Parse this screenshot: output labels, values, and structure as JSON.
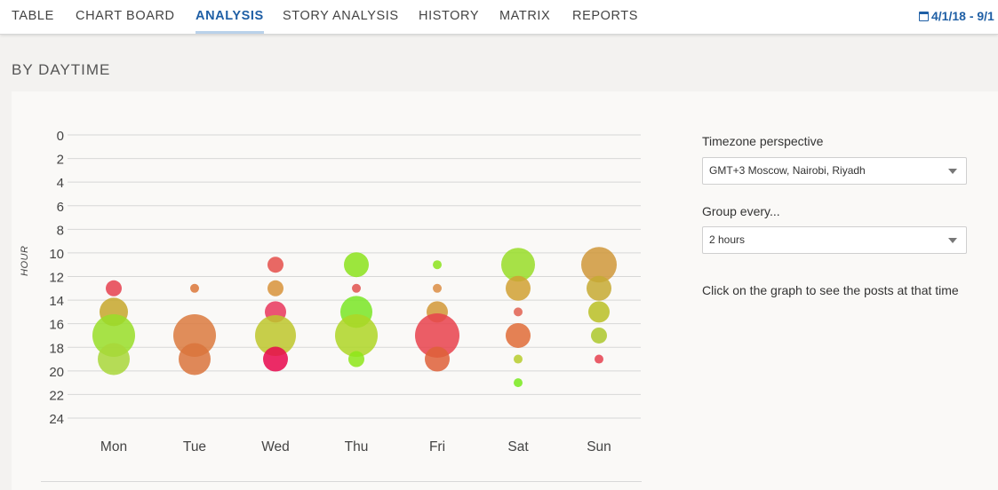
{
  "nav": {
    "tabs": [
      {
        "label": "TABLE"
      },
      {
        "label": "CHART BOARD"
      },
      {
        "label": "ANALYSIS"
      },
      {
        "label": "STORY ANALYSIS"
      },
      {
        "label": "HISTORY"
      },
      {
        "label": "MATRIX"
      },
      {
        "label": "REPORTS"
      }
    ],
    "active_tab": "ANALYSIS",
    "date_range": "4/1/18 - 9/1",
    "date_icon": "calendar-icon"
  },
  "section": {
    "title": "BY DAYTIME"
  },
  "controls": {
    "timezone_label": "Timezone perspective",
    "timezone_value": "GMT+3 Moscow, Nairobi, Riyadh",
    "group_label": "Group every...",
    "group_value": "2 hours",
    "hint": "Click on the graph to see the posts at that time"
  },
  "chart_data": {
    "type": "scatter",
    "xlabel": "",
    "ylabel": "HOUR",
    "categories": [
      "Mon",
      "Tue",
      "Wed",
      "Thu",
      "Fri",
      "Sat",
      "Sun"
    ],
    "y_ticks": [
      0,
      2,
      4,
      6,
      8,
      10,
      12,
      14,
      16,
      18,
      20,
      22,
      24
    ],
    "ylim": [
      0,
      24
    ],
    "y_inverted": true,
    "grid": true,
    "points": [
      {
        "day": "Mon",
        "hour": 13,
        "r": 9,
        "color": "#e5414f"
      },
      {
        "day": "Mon",
        "hour": 15,
        "r": 16,
        "color": "#c6a72b"
      },
      {
        "day": "Mon",
        "hour": 17,
        "r": 24,
        "color": "#98de28"
      },
      {
        "day": "Mon",
        "hour": 19,
        "r": 18,
        "color": "#a8d73a"
      },
      {
        "day": "Tue",
        "hour": 13,
        "r": 5,
        "color": "#db7738"
      },
      {
        "day": "Tue",
        "hour": 17,
        "r": 24,
        "color": "#db7a3e"
      },
      {
        "day": "Tue",
        "hour": 19,
        "r": 18,
        "color": "#d9743c"
      },
      {
        "day": "Wed",
        "hour": 11,
        "r": 9,
        "color": "#e44f4a"
      },
      {
        "day": "Wed",
        "hour": 13,
        "r": 9,
        "color": "#d7933a"
      },
      {
        "day": "Wed",
        "hour": 15,
        "r": 12,
        "color": "#e7365c"
      },
      {
        "day": "Wed",
        "hour": 17,
        "r": 23,
        "color": "#bdc72c"
      },
      {
        "day": "Wed",
        "hour": 19,
        "r": 14,
        "color": "#e8074c"
      },
      {
        "day": "Thu",
        "hour": 11,
        "r": 14,
        "color": "#8be31c"
      },
      {
        "day": "Thu",
        "hour": 13,
        "r": 5,
        "color": "#e0524e"
      },
      {
        "day": "Thu",
        "hour": 15,
        "r": 18,
        "color": "#79e625"
      },
      {
        "day": "Thu",
        "hour": 17,
        "r": 24,
        "color": "#aed626"
      },
      {
        "day": "Thu",
        "hour": 19,
        "r": 9,
        "color": "#8de619"
      },
      {
        "day": "Fri",
        "hour": 11,
        "r": 5,
        "color": "#8be31c"
      },
      {
        "day": "Fri",
        "hour": 13,
        "r": 5,
        "color": "#db8d43"
      },
      {
        "day": "Fri",
        "hour": 15,
        "r": 12,
        "color": "#d19836"
      },
      {
        "day": "Fri",
        "hour": 17,
        "r": 25,
        "color": "#e7424c"
      },
      {
        "day": "Fri",
        "hour": 19,
        "r": 14,
        "color": "#de6038"
      },
      {
        "day": "Sat",
        "hour": 11,
        "r": 19,
        "color": "#98dd28"
      },
      {
        "day": "Sat",
        "hour": 13,
        "r": 14,
        "color": "#d0a132"
      },
      {
        "day": "Sat",
        "hour": 15,
        "r": 5,
        "color": "#e06150"
      },
      {
        "day": "Sat",
        "hour": 17,
        "r": 14,
        "color": "#df6c37"
      },
      {
        "day": "Sat",
        "hour": 19,
        "r": 5,
        "color": "#b6cc2c"
      },
      {
        "day": "Sat",
        "hour": 21,
        "r": 5,
        "color": "#78ea1c"
      },
      {
        "day": "Sun",
        "hour": 11,
        "r": 20,
        "color": "#cf9839"
      },
      {
        "day": "Sun",
        "hour": 13,
        "r": 14,
        "color": "#c6aa32"
      },
      {
        "day": "Sun",
        "hour": 15,
        "r": 12,
        "color": "#b9c024"
      },
      {
        "day": "Sun",
        "hour": 17,
        "r": 9,
        "color": "#abc82b"
      },
      {
        "day": "Sun",
        "hour": 19,
        "r": 5,
        "color": "#e5414f"
      }
    ]
  },
  "colors": {
    "accent": "#1f5fa5",
    "grid": "#d7d7d7"
  }
}
